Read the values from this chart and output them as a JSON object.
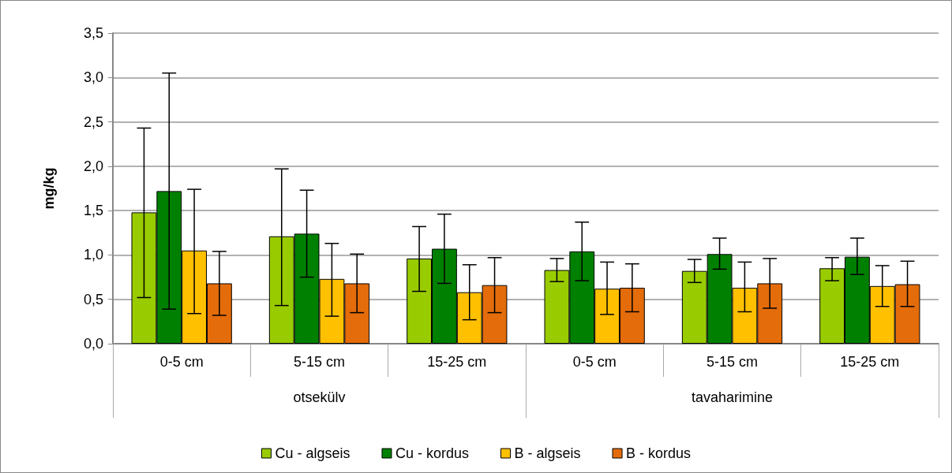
{
  "chart_data": {
    "type": "bar",
    "ylabel": "mg/kg",
    "categories": [
      "0-5 cm",
      "5-15 cm",
      "15-25 cm",
      "0-5 cm",
      "5-15 cm",
      "15-25 cm"
    ],
    "annotations": [
      "otsekülv",
      "tavaharimine"
    ],
    "series": [
      {
        "name": "Cu - algseis",
        "color": "#99cc00",
        "values": [
          1.48,
          1.21,
          0.96,
          0.83,
          0.82,
          0.85
        ],
        "errors": [
          [
            0.52,
            2.43
          ],
          [
            0.43,
            1.97
          ],
          [
            0.59,
            1.32
          ],
          [
            0.7,
            0.96
          ],
          [
            0.69,
            0.95
          ],
          [
            0.71,
            0.97
          ]
        ]
      },
      {
        "name": "Cu - kordus",
        "color": "#008000",
        "values": [
          1.72,
          1.24,
          1.07,
          1.04,
          1.01,
          0.98
        ],
        "errors": [
          [
            0.39,
            3.05
          ],
          [
            0.75,
            1.73
          ],
          [
            0.68,
            1.46
          ],
          [
            0.71,
            1.37
          ],
          [
            0.84,
            1.19
          ],
          [
            0.78,
            1.19
          ]
        ]
      },
      {
        "name": "B - algseis",
        "color": "#ffc000",
        "values": [
          1.05,
          0.73,
          0.58,
          0.62,
          0.63,
          0.65
        ],
        "errors": [
          [
            0.34,
            1.74
          ],
          [
            0.31,
            1.13
          ],
          [
            0.27,
            0.89
          ],
          [
            0.33,
            0.92
          ],
          [
            0.36,
            0.92
          ],
          [
            0.42,
            0.88
          ]
        ]
      },
      {
        "name": "B - kordus",
        "color": "#e46c0a",
        "values": [
          0.68,
          0.68,
          0.66,
          0.63,
          0.68,
          0.67
        ],
        "errors": [
          [
            0.32,
            1.04
          ],
          [
            0.35,
            1.01
          ],
          [
            0.35,
            0.97
          ],
          [
            0.36,
            0.9
          ],
          [
            0.4,
            0.96
          ],
          [
            0.42,
            0.93
          ]
        ]
      }
    ],
    "ylim": [
      0,
      3.5
    ],
    "yticks": [
      {
        "value": 0,
        "label": "0,0"
      },
      {
        "value": 0.5,
        "label": "0,5"
      },
      {
        "value": 1,
        "label": "1,0"
      },
      {
        "value": 1.5,
        "label": "1,5"
      },
      {
        "value": 2,
        "label": "2,0"
      },
      {
        "value": 2.5,
        "label": "2,5"
      },
      {
        "value": 3,
        "label": "3,0"
      },
      {
        "value": 3.5,
        "label": "3,5"
      }
    ],
    "grid": "y",
    "legend": "bottom"
  }
}
